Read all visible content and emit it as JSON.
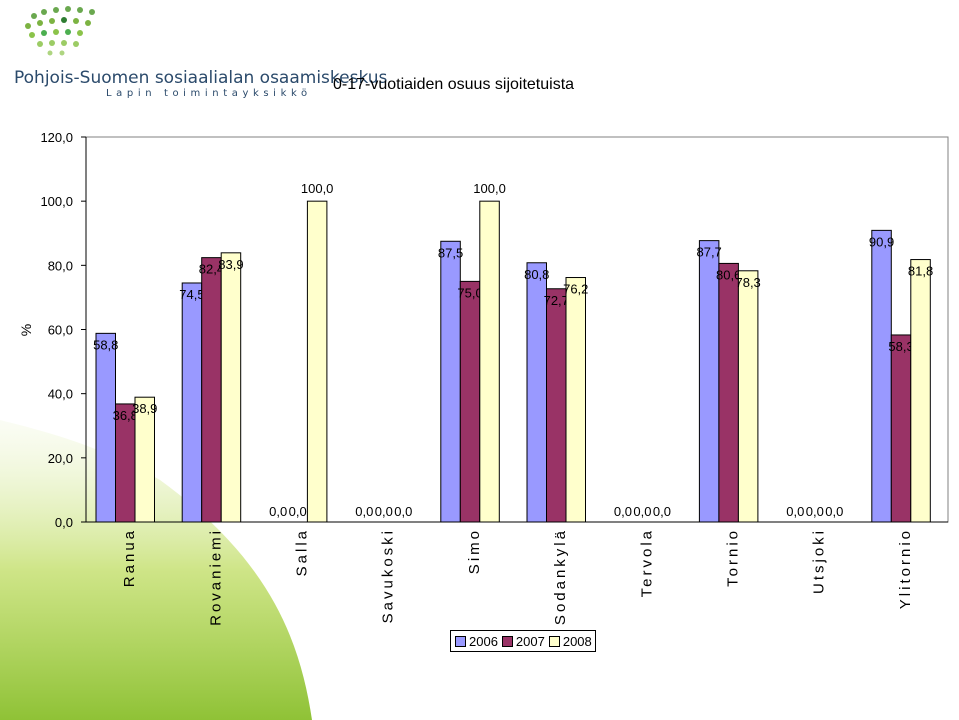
{
  "logo": {
    "name": "Pohjois-Suomen sosiaalialan osaamiskeskus",
    "unit": "Lapin toimintayksikkö"
  },
  "chart_data": {
    "type": "bar",
    "title": "0-17-vuotiaiden osuus sijoitetuista",
    "ylabel": "%",
    "xlabel": "",
    "ylim": [
      0,
      120
    ],
    "yticks": [
      "0,0",
      "20,0",
      "40,0",
      "60,0",
      "80,0",
      "100,0",
      "120,0"
    ],
    "grid": false,
    "legend": "bottom",
    "categories": [
      "Ranua",
      "Rovaniemi",
      "Salla",
      "Savukoski",
      "Simo",
      "Sodankylä",
      "Tervola",
      "Tornio",
      "Utsjoki",
      "Ylitornio"
    ],
    "series": [
      {
        "name": "2006",
        "color": "#9999ff",
        "values": [
          58.8,
          74.5,
          0.0,
          0.0,
          87.5,
          80.8,
          0.0,
          87.7,
          0.0,
          90.9
        ],
        "labels": [
          "58,8",
          "74,5",
          "0,0",
          "0,0",
          "87,5",
          "80,8",
          "0,0",
          "87,7",
          "0,0",
          "90,9"
        ]
      },
      {
        "name": "2007",
        "color": "#993366",
        "values": [
          36.8,
          82.4,
          0.0,
          0.0,
          75.0,
          72.7,
          0.0,
          80.6,
          0.0,
          58.3
        ],
        "labels": [
          "36,8",
          "82,4",
          "0,0",
          "0,0",
          "75,0",
          "72,7",
          "0,0",
          "80,6",
          "0,0",
          "58,3"
        ]
      },
      {
        "name": "2008",
        "color": "#ffffcc",
        "values": [
          38.9,
          83.9,
          100.0,
          0.0,
          100.0,
          76.2,
          0.0,
          78.3,
          0.0,
          81.8
        ],
        "labels": [
          "38,9",
          "83,9",
          "100,0",
          "0,0",
          "100,0",
          "76,2",
          "0,0",
          "78,3",
          "0,0",
          "81,8"
        ]
      }
    ]
  }
}
